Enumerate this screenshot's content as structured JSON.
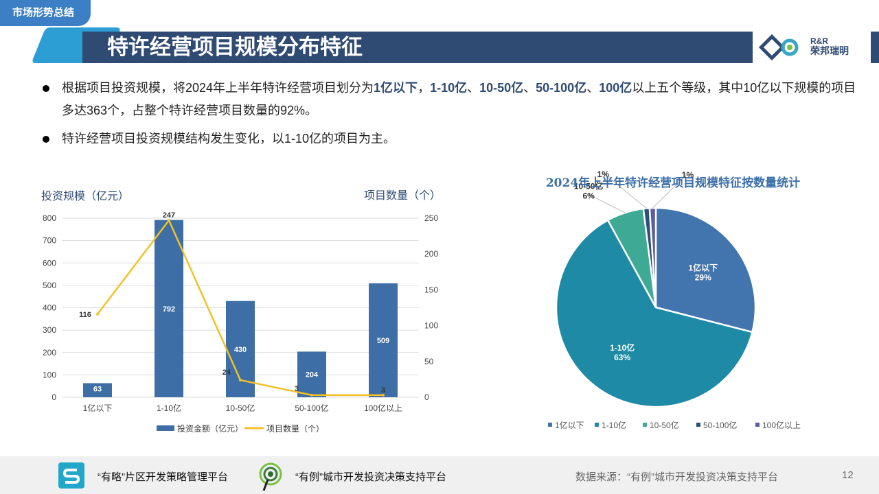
{
  "header": {
    "tag": "市场形势总结",
    "title": "特许经营项目规模分布特征",
    "logo_line1": "R&R",
    "logo_line2": "荣邦瑞明"
  },
  "bullets": [
    {
      "parts": [
        {
          "text": "根据项目投资规模，将2024年上半年特许经营项目划分为",
          "bold": false
        },
        {
          "text": "1亿以下",
          "bold": true
        },
        {
          "text": "，",
          "bold": false
        },
        {
          "text": "1-10亿",
          "bold": true
        },
        {
          "text": "、",
          "bold": false
        },
        {
          "text": "10-50亿",
          "bold": true
        },
        {
          "text": "、",
          "bold": false
        },
        {
          "text": "50-100亿",
          "bold": true
        },
        {
          "text": "、",
          "bold": false
        },
        {
          "text": "100亿",
          "bold": true
        },
        {
          "text": "以上五个等级，其中10亿以下规模的项目多达363个，占整个特许经营项目数量的92%。",
          "bold": false
        }
      ]
    },
    {
      "parts": [
        {
          "text": "特许经营项目投资规模结构发生变化，以1-10亿的项目为主。",
          "bold": false
        }
      ]
    }
  ],
  "chart_data": [
    {
      "type": "bar",
      "categories": [
        "1亿以下",
        "1-10亿",
        "10-50亿",
        "50-100亿",
        "100亿以上"
      ],
      "series": [
        {
          "name": "投资金额（亿元）",
          "type": "bar",
          "axis": "left",
          "values": [
            63,
            792,
            430,
            204,
            509
          ],
          "color": "#3d6ea5"
        },
        {
          "name": "项目数量（个）",
          "type": "line",
          "axis": "right",
          "values": [
            116,
            247,
            24,
            3,
            3
          ],
          "color": "#f5c026"
        }
      ],
      "ylabel": "投资规模（亿元）",
      "y2label": "项目数量（个）",
      "ylim": [
        0,
        800
      ],
      "y2lim": [
        0,
        250
      ],
      "yticks": [
        0,
        100,
        200,
        300,
        400,
        500,
        600,
        700,
        800
      ],
      "y2ticks": [
        0,
        50,
        100,
        150,
        200,
        250
      ],
      "grid": true,
      "legend": "bottom"
    },
    {
      "type": "pie",
      "title": "2024年上半年特许经营项目规模特征按数量统计",
      "labels": [
        "1亿以下",
        "1-10亿",
        "10-50亿",
        "50-100亿",
        "100亿以上"
      ],
      "values": [
        29,
        63,
        6,
        1,
        1
      ],
      "display": [
        "29%",
        "63%",
        "6%",
        "1%",
        "1%"
      ],
      "colors": [
        "#4275ad",
        "#1e8aa5",
        "#3ea995",
        "#2e4f7a",
        "#5c5c9e"
      ],
      "legend": "bottom"
    }
  ],
  "footer": {
    "platform1": "“有略”片区开发策略管理平台",
    "platform2": "“有例”城市开发投资决策支持平台",
    "source": "数据来源：“有例”城市开发投资决策支持平台",
    "page": "12"
  },
  "colors": {
    "accent": "#2f4a73",
    "tag_bg": "#3d7fc4",
    "footer_bg": "#f0f0f0"
  }
}
